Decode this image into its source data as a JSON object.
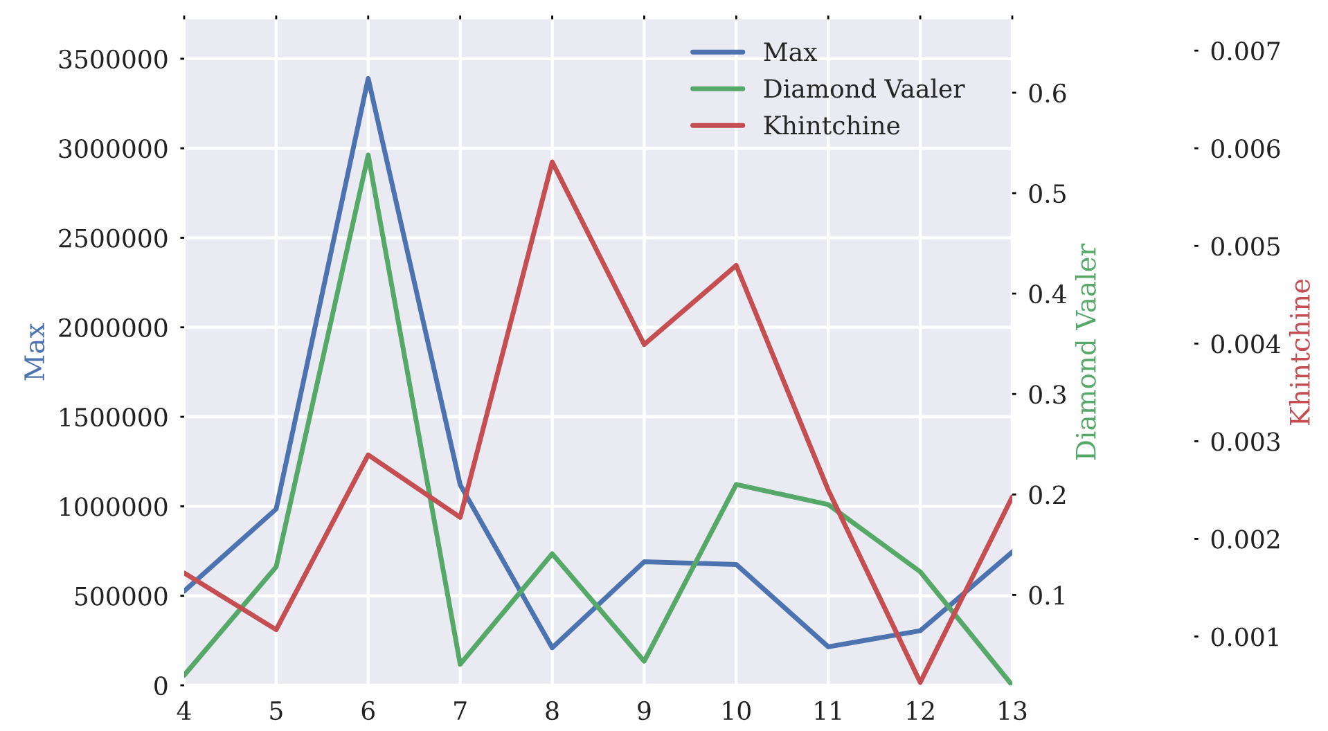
{
  "chart_data": {
    "type": "line",
    "x": [
      4,
      5,
      6,
      7,
      8,
      9,
      10,
      11,
      12,
      13
    ],
    "ylabel": "Max",
    "y2label": "Diamond Vaaler",
    "y3label": "Khintchine",
    "series": [
      {
        "name": "Max",
        "color": "#4c72b0",
        "values": [
          526000,
          985000,
          3390000,
          1120000,
          210000,
          690000,
          675000,
          215000,
          305000,
          745000
        ]
      },
      {
        "name": "Diamond Vaaler",
        "color": "#55a868",
        "axis": "y2",
        "values": [
          0.02,
          0.128,
          0.538,
          0.031,
          0.141,
          0.034,
          0.21,
          0.19,
          0.123,
          0.01
        ]
      },
      {
        "name": "Khintchine",
        "color": "#c44e52",
        "axis": "y3",
        "values": [
          0.00165,
          0.00107,
          0.00286,
          0.00222,
          0.00586,
          0.00399,
          0.0048,
          0.0025,
          0.00053,
          0.00243
        ]
      }
    ],
    "xlim": [
      4,
      13
    ],
    "xticks": [
      4,
      5,
      6,
      7,
      8,
      9,
      10,
      11,
      12,
      13
    ],
    "ylim": [
      0,
      3720000
    ],
    "yticks": [
      0,
      500000,
      1000000,
      1500000,
      2000000,
      2500000,
      3000000,
      3500000
    ],
    "y2lim": [
      0.01,
      0.673
    ],
    "y2ticks": [
      0.1,
      0.2,
      0.3,
      0.4,
      0.5,
      0.6
    ],
    "y3lim": [
      0.0005,
      0.00732
    ],
    "y3ticks": [
      0.001,
      0.002,
      0.003,
      0.004,
      0.005,
      0.006,
      0.007
    ],
    "grid": true,
    "legend": "top right",
    "line_style": "solid",
    "marker": "none"
  }
}
